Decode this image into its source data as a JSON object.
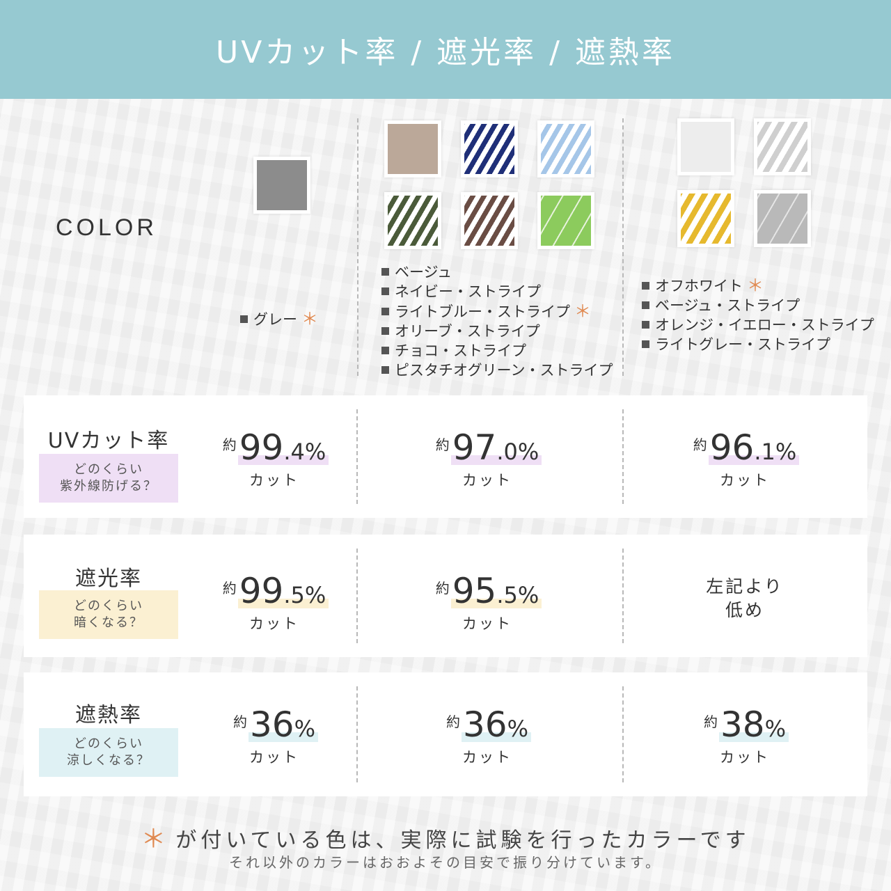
{
  "header": {
    "title": "UVカット率 / 遮光率 / 遮熱率"
  },
  "color_label": "COLOR",
  "colors": {
    "group1": [
      {
        "name": "グレー",
        "tested": true,
        "swatch": "#8c8c8c"
      }
    ],
    "group2": [
      {
        "name": "ベージュ",
        "tested": false,
        "swatch": "#bba899"
      },
      {
        "name": "ネイビー・ストライプ",
        "tested": false,
        "swatch": "#1f2f78"
      },
      {
        "name": "ライトブルー・ストライプ",
        "tested": true,
        "swatch": "#a5c6e8"
      },
      {
        "name": "オリーブ・ストライプ",
        "tested": false,
        "swatch": "#4b5b3a"
      },
      {
        "name": "チョコ・ストライプ",
        "tested": false,
        "swatch": "#6a4d44"
      },
      {
        "name": "ピスタチオグリーン・ストライプ",
        "tested": false,
        "swatch": "#8ccb5d"
      }
    ],
    "group3": [
      {
        "name": "オフホワイト",
        "tested": true,
        "swatch": "#ededed"
      },
      {
        "name": "ベージュ・ストライプ",
        "tested": false,
        "swatch": "#cfcfcf"
      },
      {
        "name": "オレンジ・イエロー・ストライプ",
        "tested": false,
        "swatch": "#e6b92e"
      },
      {
        "name": "ライトグレー・ストライプ",
        "tested": false,
        "swatch": "#b9b9b9"
      }
    ]
  },
  "star_symbol": "＊",
  "rows": {
    "uv": {
      "title": "UVカット率",
      "sub1": "どのくらい",
      "sub2": "紫外線防げる？",
      "g1": {
        "approx": "約",
        "int": "99",
        "dec": ".4",
        "pct": "%",
        "cut": "カット"
      },
      "g2": {
        "approx": "約",
        "int": "97",
        "dec": ".0",
        "pct": "%",
        "cut": "カット"
      },
      "g3": {
        "approx": "約",
        "int": "96",
        "dec": ".1",
        "pct": "%",
        "cut": "カット"
      }
    },
    "light": {
      "title": "遮光率",
      "sub1": "どのくらい",
      "sub2": "暗くなる？",
      "g1": {
        "approx": "約",
        "int": "99",
        "dec": ".5",
        "pct": "%",
        "cut": "カット"
      },
      "g2": {
        "approx": "約",
        "int": "95",
        "dec": ".5",
        "pct": "%",
        "cut": "カット"
      },
      "g3": {
        "line1": "左記より",
        "line2": "低め"
      }
    },
    "heat": {
      "title": "遮熱率",
      "sub1": "どのくらい",
      "sub2": "涼しくなる？",
      "g1": {
        "approx": "約",
        "int": "36",
        "pct": "%",
        "cut": "カット"
      },
      "g2": {
        "approx": "約",
        "int": "36",
        "pct": "%",
        "cut": "カット"
      },
      "g3": {
        "approx": "約",
        "int": "38",
        "pct": "%",
        "cut": "カット"
      }
    }
  },
  "footer": {
    "main": "が付いている色は、実際に試験を行ったカラーです",
    "sub": "それ以外のカラーはおおよその目安で振り分けています。"
  },
  "accent_colors": {
    "header": "#96c9d1",
    "star": "#e08a52",
    "uv": "#efdff5",
    "light": "#fbf0d2",
    "heat": "#dff1f4"
  }
}
